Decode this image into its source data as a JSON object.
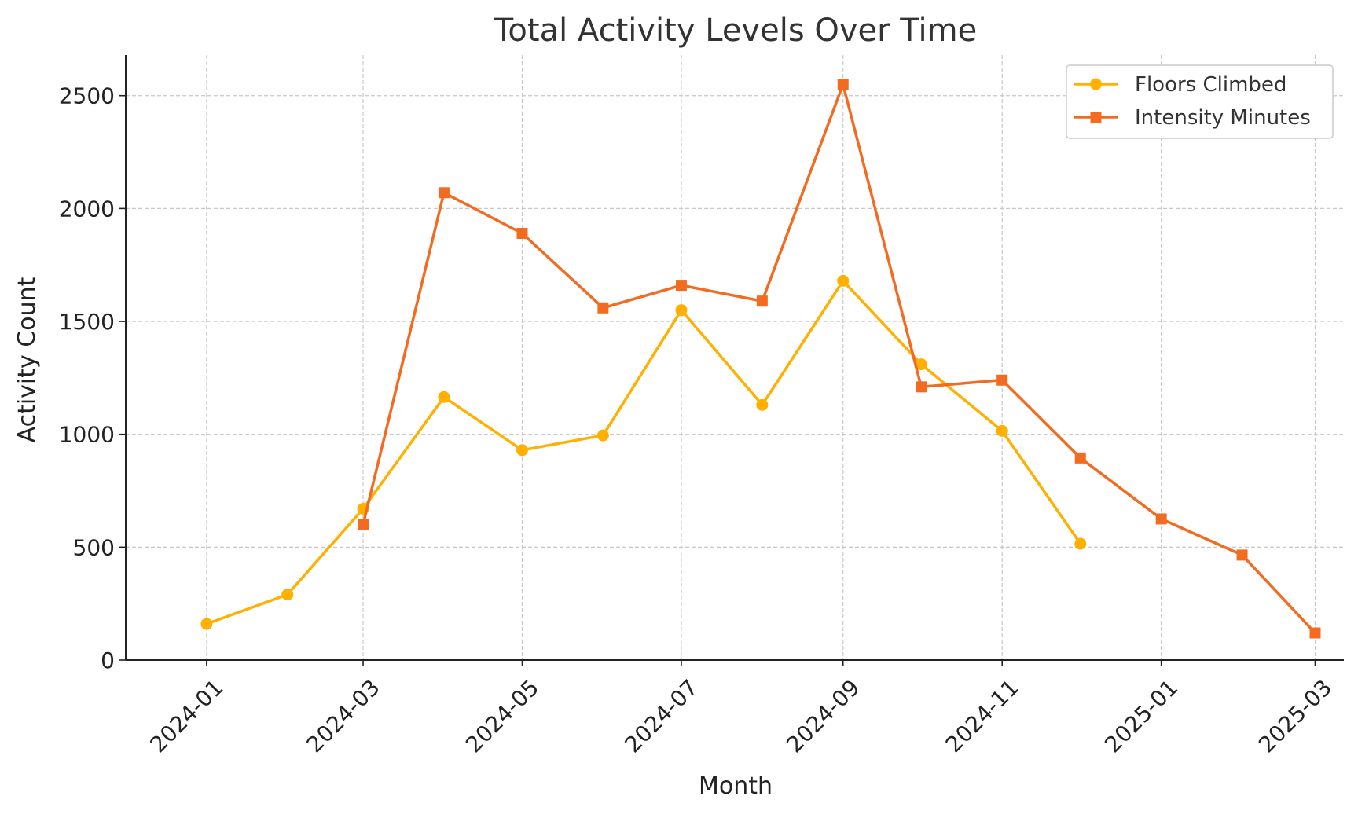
{
  "chart_data": {
    "type": "line",
    "title": "Total Activity Levels Over Time",
    "xlabel": "Month",
    "ylabel": "Activity Count",
    "x_ticks": [
      "2024-01",
      "2024-03",
      "2024-05",
      "2024-07",
      "2024-09",
      "2024-11",
      "2025-01",
      "2025-03"
    ],
    "y_ticks": [
      "0",
      "500",
      "1000",
      "1500",
      "2000",
      "2500"
    ],
    "ylim": [
      0,
      2680
    ],
    "xlim": [
      "2023-12-01",
      "2025-03-12"
    ],
    "grid": true,
    "legend_position": "top-right",
    "series": [
      {
        "name": "Floors Climbed",
        "color": "#FFB000",
        "marker": "circle",
        "points": [
          {
            "x": "2024-01-01",
            "y": 160
          },
          {
            "x": "2024-02-01",
            "y": 290
          },
          {
            "x": "2024-03-01",
            "y": 670
          },
          {
            "x": "2024-04-01",
            "y": 1165
          },
          {
            "x": "2024-05-01",
            "y": 930
          },
          {
            "x": "2024-06-01",
            "y": 995
          },
          {
            "x": "2024-07-01",
            "y": 1550
          },
          {
            "x": "2024-08-01",
            "y": 1130
          },
          {
            "x": "2024-09-01",
            "y": 1680
          },
          {
            "x": "2024-10-01",
            "y": 1310
          },
          {
            "x": "2024-11-01",
            "y": 1015
          },
          {
            "x": "2024-12-01",
            "y": 515
          }
        ]
      },
      {
        "name": "Intensity Minutes",
        "color": "#F26B21",
        "marker": "square",
        "points": [
          {
            "x": "2024-03-01",
            "y": 600
          },
          {
            "x": "2024-04-01",
            "y": 2070
          },
          {
            "x": "2024-05-01",
            "y": 1890
          },
          {
            "x": "2024-06-01",
            "y": 1560
          },
          {
            "x": "2024-07-01",
            "y": 1660
          },
          {
            "x": "2024-08-01",
            "y": 1590
          },
          {
            "x": "2024-09-01",
            "y": 2550
          },
          {
            "x": "2024-10-01",
            "y": 1210
          },
          {
            "x": "2024-11-01",
            "y": 1240
          },
          {
            "x": "2024-12-01",
            "y": 895
          },
          {
            "x": "2025-01-01",
            "y": 625
          },
          {
            "x": "2025-02-01",
            "y": 465
          },
          {
            "x": "2025-03-01",
            "y": 120
          }
        ]
      }
    ]
  }
}
